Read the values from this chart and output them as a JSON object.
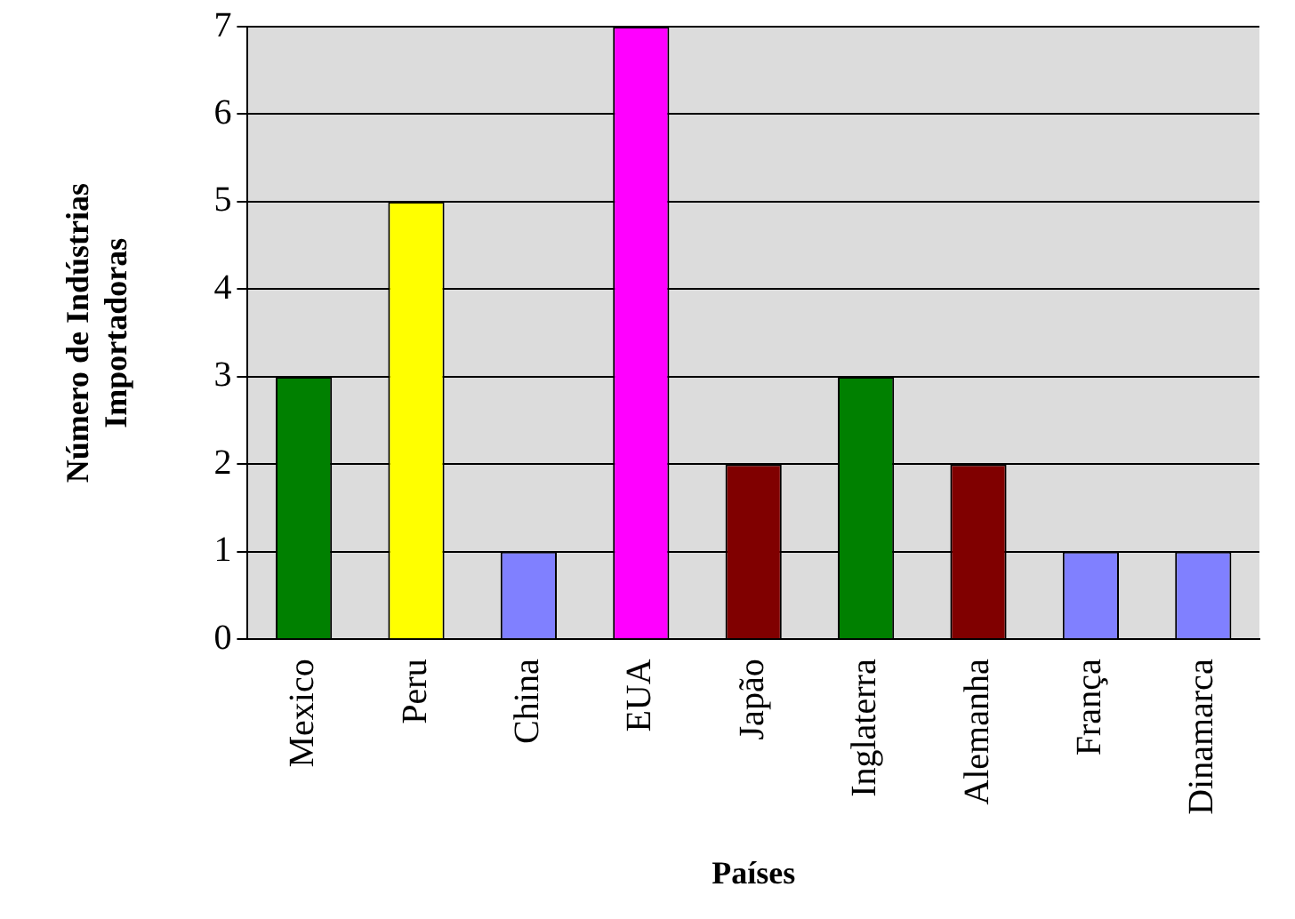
{
  "chart_data": {
    "type": "bar",
    "xlabel": "Países",
    "ylabel": "Número de Indústrias Importadoras",
    "categories": [
      "Mexico",
      "Peru",
      "China",
      "EUA",
      "Japão",
      "Inglaterra",
      "Alemanha",
      "França",
      "Dinamarca"
    ],
    "values": [
      3,
      5,
      1,
      7,
      2,
      3,
      2,
      1,
      1
    ],
    "colors": [
      "#008000",
      "#ffff00",
      "#8080ff",
      "#ff00ff",
      "#800000",
      "#008000",
      "#800000",
      "#8080ff",
      "#8080ff"
    ],
    "ylim": [
      0,
      7
    ],
    "yticks": [
      0,
      1,
      2,
      3,
      4,
      5,
      6,
      7
    ],
    "grid": "y",
    "legend": false
  }
}
